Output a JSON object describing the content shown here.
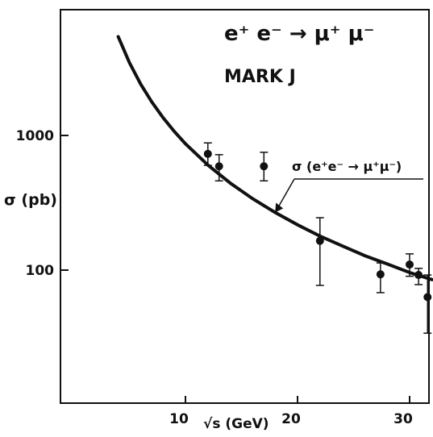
{
  "chart_data": {
    "type": "scatter",
    "title": "e⁺ e⁻ → μ⁺ μ⁻",
    "subtitle": "MARK J",
    "xlabel": "√s (GeV)",
    "ylabel": "σ (pb)",
    "xlim": [
      3,
      32.5
    ],
    "ylim": [
      20,
      5000
    ],
    "y_scale": "log",
    "grid": false,
    "x_ticks": [
      10,
      20,
      30
    ],
    "y_ticks": [
      100,
      1000
    ],
    "x_tick_labels": [
      "10",
      "20",
      "30"
    ],
    "y_tick_labels": [
      "100",
      "1000"
    ],
    "series": [
      {
        "kind": "points_with_error_bars",
        "points": [
          {
            "x": 12.0,
            "y": 730,
            "err_low": 600,
            "err_high": 880
          },
          {
            "x": 13.0,
            "y": 590,
            "err_low": 460,
            "err_high": 720
          },
          {
            "x": 17.0,
            "y": 590,
            "err_low": 460,
            "err_high": 750
          },
          {
            "x": 22.0,
            "y": 165,
            "err_low": 77,
            "err_high": 245
          },
          {
            "x": 27.4,
            "y": 93,
            "err_low": 68,
            "err_high": 113
          },
          {
            "x": 30.0,
            "y": 110,
            "err_low": 90,
            "err_high": 132
          },
          {
            "x": 30.8,
            "y": 92,
            "err_low": 78,
            "err_high": 103
          },
          {
            "x": 31.6,
            "y": 63,
            "err_low": 34,
            "err_high": 92
          }
        ]
      },
      {
        "name": "σ (e⁺e⁻ → μ⁺μ⁻)",
        "kind": "curve",
        "formula": "σ = 86800 / s pb",
        "x": [
          4,
          5,
          6,
          7,
          8,
          9,
          10,
          12,
          14,
          16,
          18,
          20,
          22,
          24,
          26,
          28,
          30,
          32
        ],
        "y": [
          5425,
          3472,
          2411,
          1771,
          1356,
          1072,
          868,
          603,
          443,
          339,
          268,
          217,
          179,
          151,
          128,
          111,
          96,
          85
        ]
      }
    ],
    "annotations": [
      {
        "text": "σ (e⁺e⁻ → μ⁺μ⁻)",
        "points_to": "curve"
      }
    ]
  }
}
